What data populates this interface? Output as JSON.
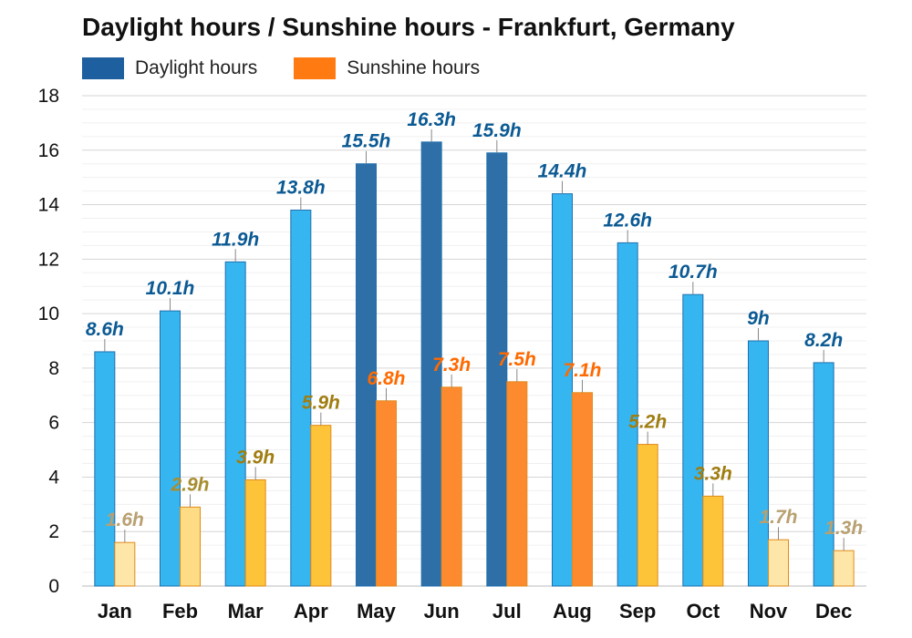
{
  "chart_data": {
    "type": "bar",
    "title": "Daylight hours / Sunshine hours - Frankfurt, Germany",
    "categories": [
      "Jan",
      "Feb",
      "Mar",
      "Apr",
      "May",
      "Jun",
      "Jul",
      "Aug",
      "Sep",
      "Oct",
      "Nov",
      "Dec"
    ],
    "series": [
      {
        "name": "Daylight hours",
        "values": [
          8.6,
          10.1,
          11.9,
          13.8,
          15.5,
          16.3,
          15.9,
          14.4,
          12.6,
          10.7,
          9,
          8.2
        ],
        "labels": [
          "8.6h",
          "10.1h",
          "11.9h",
          "13.8h",
          "15.5h",
          "16.3h",
          "15.9h",
          "14.4h",
          "12.6h",
          "10.7h",
          "9h",
          "8.2h"
        ],
        "color": "#1e5fa0",
        "colors": [
          "#36b6f0",
          "#36b6f0",
          "#36b6f0",
          "#36b6f0",
          "#2f6fa8",
          "#2f6fa8",
          "#2f6fa8",
          "#36b6f0",
          "#36b6f0",
          "#36b6f0",
          "#36b6f0",
          "#36b6f0"
        ],
        "label_colors": [
          "#0b5a94",
          "#0b5a94",
          "#0b5a94",
          "#0b5a94",
          "#0b5a94",
          "#0b5a94",
          "#0b5a94",
          "#0b5a94",
          "#0b5a94",
          "#0b5a94",
          "#0b5a94",
          "#0b5a94"
        ]
      },
      {
        "name": "Sunshine hours",
        "values": [
          1.6,
          2.9,
          3.9,
          5.9,
          6.8,
          7.3,
          7.5,
          7.1,
          5.2,
          3.3,
          1.7,
          1.3
        ],
        "labels": [
          "1.6h",
          "2.9h",
          "3.9h",
          "5.9h",
          "6.8h",
          "7.3h",
          "7.5h",
          "7.1h",
          "5.2h",
          "3.3h",
          "1.7h",
          "1.3h"
        ],
        "color": "#ff7a10",
        "colors": [
          "#fde6a8",
          "#fddc85",
          "#fdc43a",
          "#fdc43a",
          "#fe8a30",
          "#fe8a30",
          "#fe8a30",
          "#fe8a30",
          "#fdc43a",
          "#fdc43a",
          "#fde6a8",
          "#fde6a8"
        ],
        "label_colors": [
          "#b8a070",
          "#a88d30",
          "#a07d10",
          "#a07d10",
          "#ff6a00",
          "#ff6a00",
          "#ff6a00",
          "#ff6a00",
          "#a07d10",
          "#a07d10",
          "#b8a070",
          "#b8a070"
        ]
      }
    ],
    "ylim": [
      0,
      18
    ],
    "yticks": [
      0,
      2,
      4,
      6,
      8,
      10,
      12,
      14,
      16,
      18
    ],
    "grid": true,
    "legend": "top-left"
  }
}
